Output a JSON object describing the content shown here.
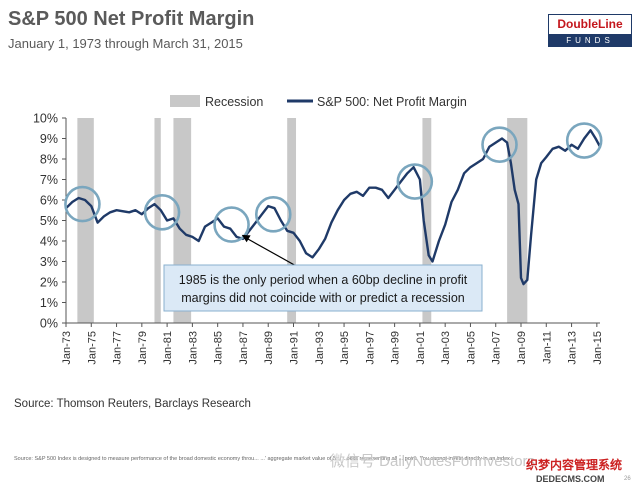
{
  "header": {
    "title": "S&P 500 Net Profit Margin",
    "subtitle": "January 1, 1973 through March 31, 2015"
  },
  "logo": {
    "top": "DoubleLine",
    "bottom": "FUNDS",
    "colors": {
      "red": "#c4161c",
      "navy": "#1f3a68"
    }
  },
  "chart_data": {
    "type": "line",
    "title": "",
    "xlabel": "",
    "ylabel": "",
    "ylim": [
      0,
      10
    ],
    "xlim": [
      1973.0,
      2015.25
    ],
    "yticks": [
      "0%",
      "1%",
      "2%",
      "3%",
      "4%",
      "5%",
      "6%",
      "7%",
      "8%",
      "9%",
      "10%"
    ],
    "xticks": [
      {
        "x": 1973,
        "label": "Jan-73"
      },
      {
        "x": 1975,
        "label": "Jan-75"
      },
      {
        "x": 1977,
        "label": "Jan-77"
      },
      {
        "x": 1979,
        "label": "Jan-79"
      },
      {
        "x": 1981,
        "label": "Jan-81"
      },
      {
        "x": 1983,
        "label": "Jan-83"
      },
      {
        "x": 1985,
        "label": "Jan-85"
      },
      {
        "x": 1987,
        "label": "Jan-87"
      },
      {
        "x": 1989,
        "label": "Jan-89"
      },
      {
        "x": 1991,
        "label": "Jan-91"
      },
      {
        "x": 1993,
        "label": "Jan-93"
      },
      {
        "x": 1995,
        "label": "Jan-95"
      },
      {
        "x": 1997,
        "label": "Jan-97"
      },
      {
        "x": 1999,
        "label": "Jan-99"
      },
      {
        "x": 2001,
        "label": "Jan-01"
      },
      {
        "x": 2003,
        "label": "Jan-03"
      },
      {
        "x": 2005,
        "label": "Jan-05"
      },
      {
        "x": 2007,
        "label": "Jan-07"
      },
      {
        "x": 2009,
        "label": "Jan-09"
      },
      {
        "x": 2011,
        "label": "Jan-11"
      },
      {
        "x": 2013,
        "label": "Jan-13"
      },
      {
        "x": 2015,
        "label": "Jan-15"
      }
    ],
    "legend": {
      "placement": "top-left",
      "recession_label": "Recession",
      "series_label": "S&P 500: Net Profit Margin"
    },
    "grid": false,
    "recessions": [
      [
        1973.9,
        1975.2
      ],
      [
        1980.0,
        1980.5
      ],
      [
        1981.5,
        1982.9
      ],
      [
        1990.5,
        1991.2
      ],
      [
        2001.2,
        2001.9
      ],
      [
        2007.9,
        2009.5
      ]
    ],
    "circles": [
      {
        "x": 1974.3,
        "y": 5.8
      },
      {
        "x": 1980.6,
        "y": 5.4
      },
      {
        "x": 1986.1,
        "y": 4.8
      },
      {
        "x": 1989.4,
        "y": 5.3
      },
      {
        "x": 2000.6,
        "y": 6.9
      },
      {
        "x": 2007.3,
        "y": 8.7
      },
      {
        "x": 2014.0,
        "y": 8.9
      }
    ],
    "annotation": {
      "lines": [
        "1985 is the only period when  a 60bp decline in profit",
        "margins did not coincide with or predict a recession"
      ],
      "arrow_to": {
        "x": 1986.9,
        "y": 4.3
      }
    },
    "series": [
      {
        "name": "S&P 500: Net Profit Margin",
        "color": "#1f3a68",
        "points": [
          [
            1973.0,
            5.6
          ],
          [
            1973.5,
            5.9
          ],
          [
            1974.0,
            6.1
          ],
          [
            1974.5,
            6.0
          ],
          [
            1975.0,
            5.7
          ],
          [
            1975.5,
            4.9
          ],
          [
            1976.0,
            5.2
          ],
          [
            1976.5,
            5.4
          ],
          [
            1977.0,
            5.5
          ],
          [
            1978.0,
            5.4
          ],
          [
            1978.5,
            5.5
          ],
          [
            1979.0,
            5.3
          ],
          [
            1979.5,
            5.6
          ],
          [
            1980.0,
            5.8
          ],
          [
            1980.5,
            5.5
          ],
          [
            1981.0,
            5.0
          ],
          [
            1981.5,
            5.1
          ],
          [
            1982.0,
            4.6
          ],
          [
            1982.5,
            4.3
          ],
          [
            1983.0,
            4.2
          ],
          [
            1983.5,
            4.0
          ],
          [
            1984.0,
            4.7
          ],
          [
            1984.5,
            4.9
          ],
          [
            1985.0,
            5.1
          ],
          [
            1985.5,
            4.7
          ],
          [
            1986.0,
            4.6
          ],
          [
            1986.5,
            4.2
          ],
          [
            1987.0,
            4.1
          ],
          [
            1987.5,
            4.5
          ],
          [
            1988.0,
            4.9
          ],
          [
            1988.5,
            5.3
          ],
          [
            1989.0,
            5.7
          ],
          [
            1989.5,
            5.6
          ],
          [
            1990.0,
            5.0
          ],
          [
            1990.5,
            4.5
          ],
          [
            1991.0,
            4.4
          ],
          [
            1991.5,
            4.0
          ],
          [
            1992.0,
            3.4
          ],
          [
            1992.5,
            3.2
          ],
          [
            1993.0,
            3.6
          ],
          [
            1993.5,
            4.1
          ],
          [
            1994.0,
            4.9
          ],
          [
            1994.5,
            5.5
          ],
          [
            1995.0,
            6.0
          ],
          [
            1995.5,
            6.3
          ],
          [
            1996.0,
            6.4
          ],
          [
            1996.5,
            6.2
          ],
          [
            1997.0,
            6.6
          ],
          [
            1997.5,
            6.6
          ],
          [
            1998.0,
            6.5
          ],
          [
            1998.5,
            6.1
          ],
          [
            1999.0,
            6.5
          ],
          [
            1999.5,
            6.9
          ],
          [
            2000.0,
            7.3
          ],
          [
            2000.5,
            7.6
          ],
          [
            2001.0,
            7.0
          ],
          [
            2001.3,
            5.0
          ],
          [
            2001.7,
            3.3
          ],
          [
            2002.0,
            3.0
          ],
          [
            2002.5,
            4.0
          ],
          [
            2003.0,
            4.8
          ],
          [
            2003.5,
            5.9
          ],
          [
            2004.0,
            6.5
          ],
          [
            2004.5,
            7.3
          ],
          [
            2005.0,
            7.6
          ],
          [
            2005.5,
            7.8
          ],
          [
            2006.0,
            8.0
          ],
          [
            2006.5,
            8.6
          ],
          [
            2007.0,
            8.8
          ],
          [
            2007.5,
            9.0
          ],
          [
            2007.9,
            8.8
          ],
          [
            2008.2,
            7.8
          ],
          [
            2008.5,
            6.5
          ],
          [
            2008.8,
            5.8
          ],
          [
            2009.0,
            2.2
          ],
          [
            2009.2,
            1.9
          ],
          [
            2009.5,
            2.1
          ],
          [
            2009.8,
            4.3
          ],
          [
            2010.2,
            7.0
          ],
          [
            2010.6,
            7.8
          ],
          [
            2011.0,
            8.1
          ],
          [
            2011.5,
            8.5
          ],
          [
            2012.0,
            8.6
          ],
          [
            2012.5,
            8.4
          ],
          [
            2013.0,
            8.7
          ],
          [
            2013.5,
            8.5
          ],
          [
            2014.0,
            9.0
          ],
          [
            2014.5,
            9.4
          ],
          [
            2014.9,
            9.0
          ],
          [
            2015.25,
            8.6
          ]
        ]
      }
    ],
    "recession_color": "#c8c8c8",
    "circle_color": "#7aa6be"
  },
  "source": "Source: Thomson Reuters, Barclays Research",
  "footnote": "Source:  S&P 500 Index is designed to measure performance of the broad domestic economy throu... ...' aggregate market value of 5... ...ocks representing all ... point. You cannot invest directly in an index.",
  "watermark": "微信号 DailyNotesForInvestors",
  "watermark2": "织梦内容管理系统",
  "watermark3": "DEDECMS.COM",
  "page_number": "26"
}
